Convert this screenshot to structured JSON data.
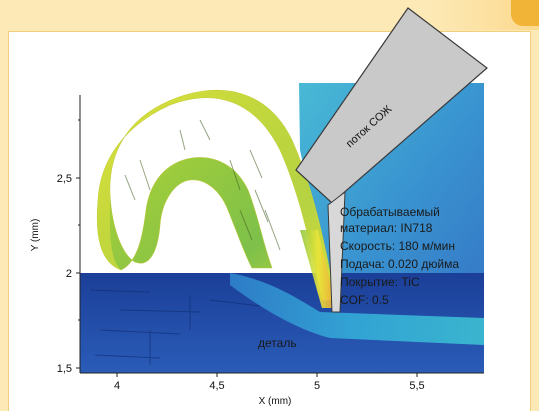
{
  "axes": {
    "x_title": "X (mm)",
    "y_title": "Y (mm)",
    "x_ticks": [
      "4",
      "4,5",
      "5",
      "5,5"
    ],
    "y_ticks": [
      "2,5",
      "2",
      "1,5"
    ]
  },
  "coolant_label": "поток СОЖ",
  "part_label": "деталь",
  "info": {
    "line1": "Обрабатываемый",
    "line2": "материал: IN718",
    "line3": "Скорость: 180 м/мин",
    "line4": "Подача: 0.020 дюйма",
    "line5": "Покрытие: TiC",
    "line6": "COF: 0.5"
  },
  "colors": {
    "background": "#fde9b6",
    "accent": "#f2b437",
    "workpiece": "#1f4fa6",
    "chip_hot": "#e9e63a",
    "chip_mid": "#8cc63f",
    "tool": "#c9c9c9"
  }
}
